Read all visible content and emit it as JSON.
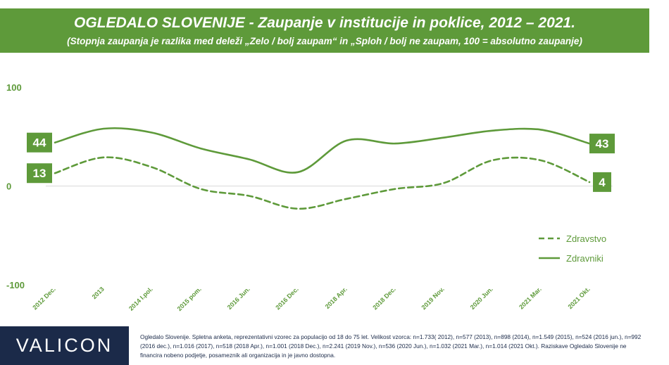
{
  "header": {
    "title": "OGLEDALO SLOVENIJE - Zaupanje v institucije in poklice, 2012 – 2021.",
    "subtitle": "(Stopnja zaupanja je razlika med deleži „Zelo / bolj zaupam“ in „Sploh / bolj ne zaupam, 100 = absolutno zaupanje)"
  },
  "colors": {
    "accent": "#5e9a3a",
    "brand_bg": "#1b2a49",
    "gridline": "#d9d9d9"
  },
  "chart_data": {
    "type": "line",
    "categories": [
      "2012 Dec.",
      "2013",
      "2014 I.pol.",
      "2015 pom.",
      "2016 Jun.",
      "2016 Dec.",
      "2018 Apr.",
      "2018 Dec.",
      "2019 Nov.",
      "2020 Jun.",
      "2021 Mar.",
      "2021 Okt."
    ],
    "series": [
      {
        "name": "Zdravstvo",
        "style": "dashed",
        "values": [
          13,
          29,
          19,
          -3,
          -10,
          -23,
          -13,
          -3,
          3,
          26,
          26,
          4
        ]
      },
      {
        "name": "Zdravniki",
        "style": "solid",
        "values": [
          44,
          58,
          54,
          38,
          27,
          14,
          46,
          43,
          49,
          56,
          57,
          43
        ]
      }
    ],
    "end_labels": {
      "start": [
        "44",
        "13"
      ],
      "end": [
        "43",
        "4"
      ]
    },
    "yticks": [
      "100",
      "0",
      "-100"
    ],
    "ylim": [
      -100,
      100
    ],
    "legend_position": "right",
    "grid": false
  },
  "footer": {
    "brand": "VALICON",
    "note": "Ogledalo Slovenije. Spletna anketa, reprezentativni vzorec za populacijo od 18 do 75 let. Velikost vzorca: n=1.733( 2012), n=577 (2013), n=898 (2014), n=1.549 (2015), n=524 (2016 jun.), n=992 (2016 dec.), n=1.016 (2017), n=518 (2018 Apr.), n=1.001 (2018 Dec.), n=2.241 (2019 Nov.), n=536 (2020 Jun.), n=1.032 (2021 Mar.), n=1.014 (2021 Okt.). Raziskave Ogledalo Slovenije ne financira nobeno podjetje, posameznik ali organizacija in je javno dostopna."
  }
}
